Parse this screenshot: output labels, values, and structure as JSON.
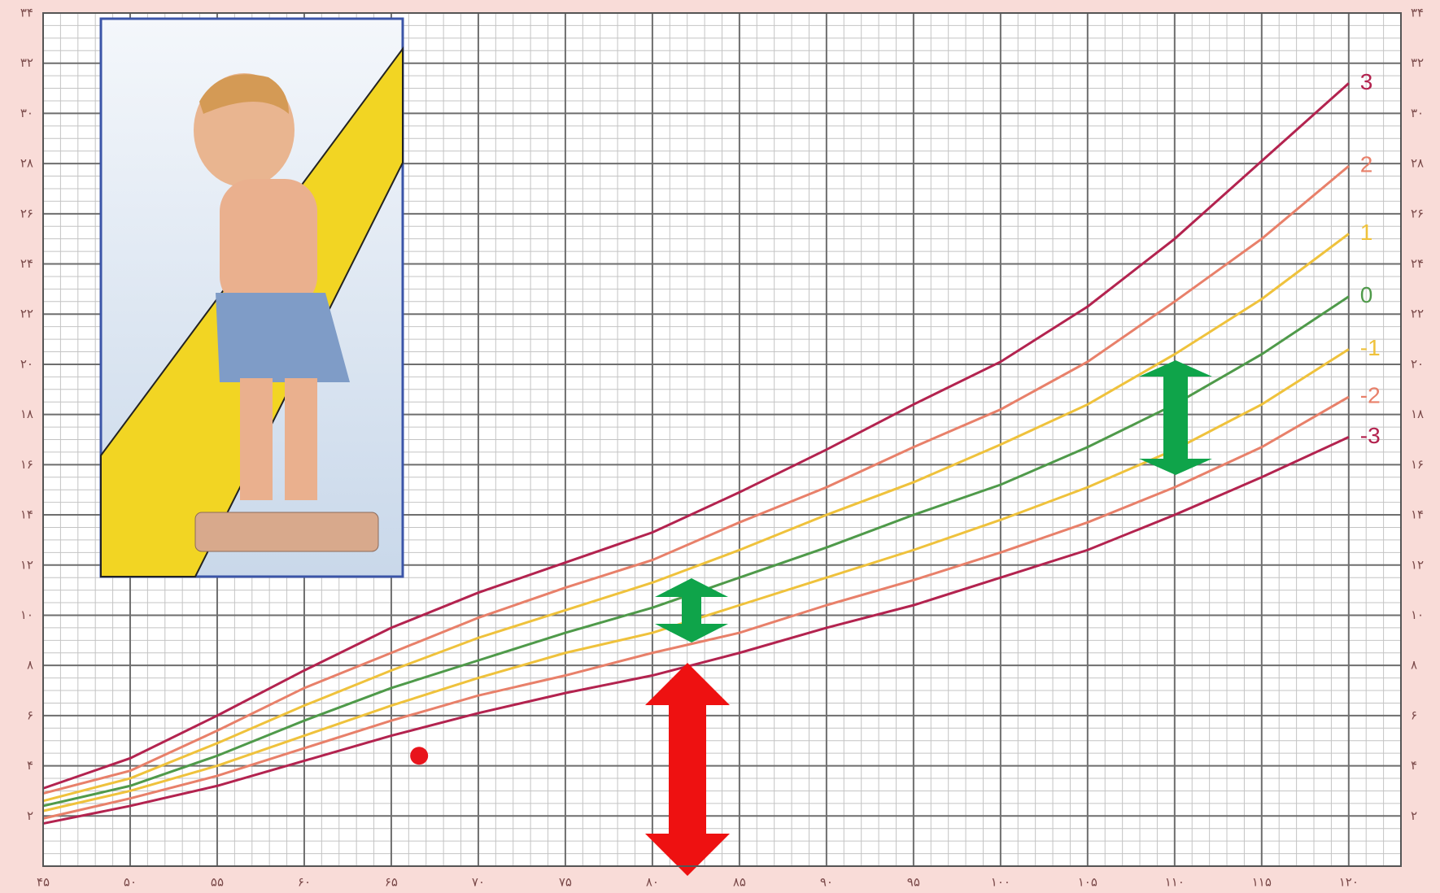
{
  "chart_data": {
    "type": "line",
    "x": [
      45,
      50,
      55,
      60,
      65,
      70,
      75,
      80,
      85,
      90,
      95,
      100,
      105,
      110,
      115,
      120
    ],
    "series": [
      {
        "name": "3",
        "color": "#b3234f",
        "values": [
          3.1,
          4.3,
          6.0,
          7.8,
          9.5,
          10.9,
          12.1,
          13.3,
          14.9,
          16.6,
          18.4,
          20.1,
          22.3,
          25.0,
          28.1,
          31.2
        ]
      },
      {
        "name": "2",
        "color": "#e8806a",
        "values": [
          2.9,
          3.8,
          5.4,
          7.1,
          8.5,
          9.9,
          11.1,
          12.2,
          13.7,
          15.1,
          16.7,
          18.2,
          20.1,
          22.5,
          25.0,
          27.9
        ]
      },
      {
        "name": "1",
        "color": "#efc23c",
        "values": [
          2.6,
          3.5,
          4.9,
          6.4,
          7.8,
          9.1,
          10.2,
          11.3,
          12.6,
          14.0,
          15.3,
          16.8,
          18.4,
          20.4,
          22.6,
          25.2
        ]
      },
      {
        "name": "0",
        "color": "#4f9a4a",
        "values": [
          2.4,
          3.2,
          4.4,
          5.8,
          7.1,
          8.2,
          9.3,
          10.3,
          11.5,
          12.7,
          14.0,
          15.2,
          16.7,
          18.4,
          20.4,
          22.7
        ]
      },
      {
        "name": "-1",
        "color": "#efc23c",
        "values": [
          2.2,
          3.0,
          4.0,
          5.2,
          6.4,
          7.5,
          8.5,
          9.3,
          10.4,
          11.5,
          12.6,
          13.8,
          15.1,
          16.6,
          18.4,
          20.6
        ]
      },
      {
        "name": "-2",
        "color": "#e8806a",
        "values": [
          1.9,
          2.7,
          3.6,
          4.7,
          5.8,
          6.8,
          7.6,
          8.5,
          9.3,
          10.4,
          11.4,
          12.5,
          13.7,
          15.1,
          16.7,
          18.7
        ]
      },
      {
        "name": "-3",
        "color": "#b3234f",
        "values": [
          1.7,
          2.4,
          3.2,
          4.2,
          5.2,
          6.1,
          6.9,
          7.6,
          8.5,
          9.5,
          10.4,
          11.5,
          12.6,
          14.0,
          15.5,
          17.1
        ]
      }
    ],
    "marker": {
      "x": 66.6,
      "y": 4.4,
      "color": "#e8141c"
    },
    "xlim": [
      45,
      123
    ],
    "ylim": [
      0,
      34
    ],
    "xticks": [
      {
        "value": 45,
        "label": "۴۵"
      },
      {
        "value": 50,
        "label": "۵۰"
      },
      {
        "value": 55,
        "label": "۵۵"
      },
      {
        "value": 60,
        "label": "۶۰"
      },
      {
        "value": 65,
        "label": "۶۵"
      },
      {
        "value": 70,
        "label": "۷۰"
      },
      {
        "value": 75,
        "label": "۷۵"
      },
      {
        "value": 80,
        "label": "۸۰"
      },
      {
        "value": 85,
        "label": "۸۵"
      },
      {
        "value": 90,
        "label": "۹۰"
      },
      {
        "value": 95,
        "label": "۹۵"
      },
      {
        "value": 100,
        "label": "۱۰۰"
      },
      {
        "value": 105,
        "label": "۱۰۵"
      },
      {
        "value": 110,
        "label": "۱۱۰"
      },
      {
        "value": 115,
        "label": "۱۱۵"
      },
      {
        "value": 120,
        "label": "۱۲۰"
      }
    ],
    "yticks": [
      {
        "value": 2,
        "label": "۲"
      },
      {
        "value": 4,
        "label": "۴"
      },
      {
        "value": 6,
        "label": "۶"
      },
      {
        "value": 8,
        "label": "۸"
      },
      {
        "value": 10,
        "label": "۱۰"
      },
      {
        "value": 12,
        "label": "۱۲"
      },
      {
        "value": 14,
        "label": "۱۴"
      },
      {
        "value": 16,
        "label": "۱۶"
      },
      {
        "value": 18,
        "label": "۱۸"
      },
      {
        "value": 20,
        "label": "۲۰"
      },
      {
        "value": 22,
        "label": "۲۲"
      },
      {
        "value": 24,
        "label": "۲۴"
      },
      {
        "value": 26,
        "label": "۲۶"
      },
      {
        "value": 28,
        "label": "۲۸"
      },
      {
        "value": 30,
        "label": "۳۰"
      },
      {
        "value": 32,
        "label": "۳۲"
      },
      {
        "value": 34,
        "label": "۳۴"
      }
    ],
    "grid": true
  }
}
